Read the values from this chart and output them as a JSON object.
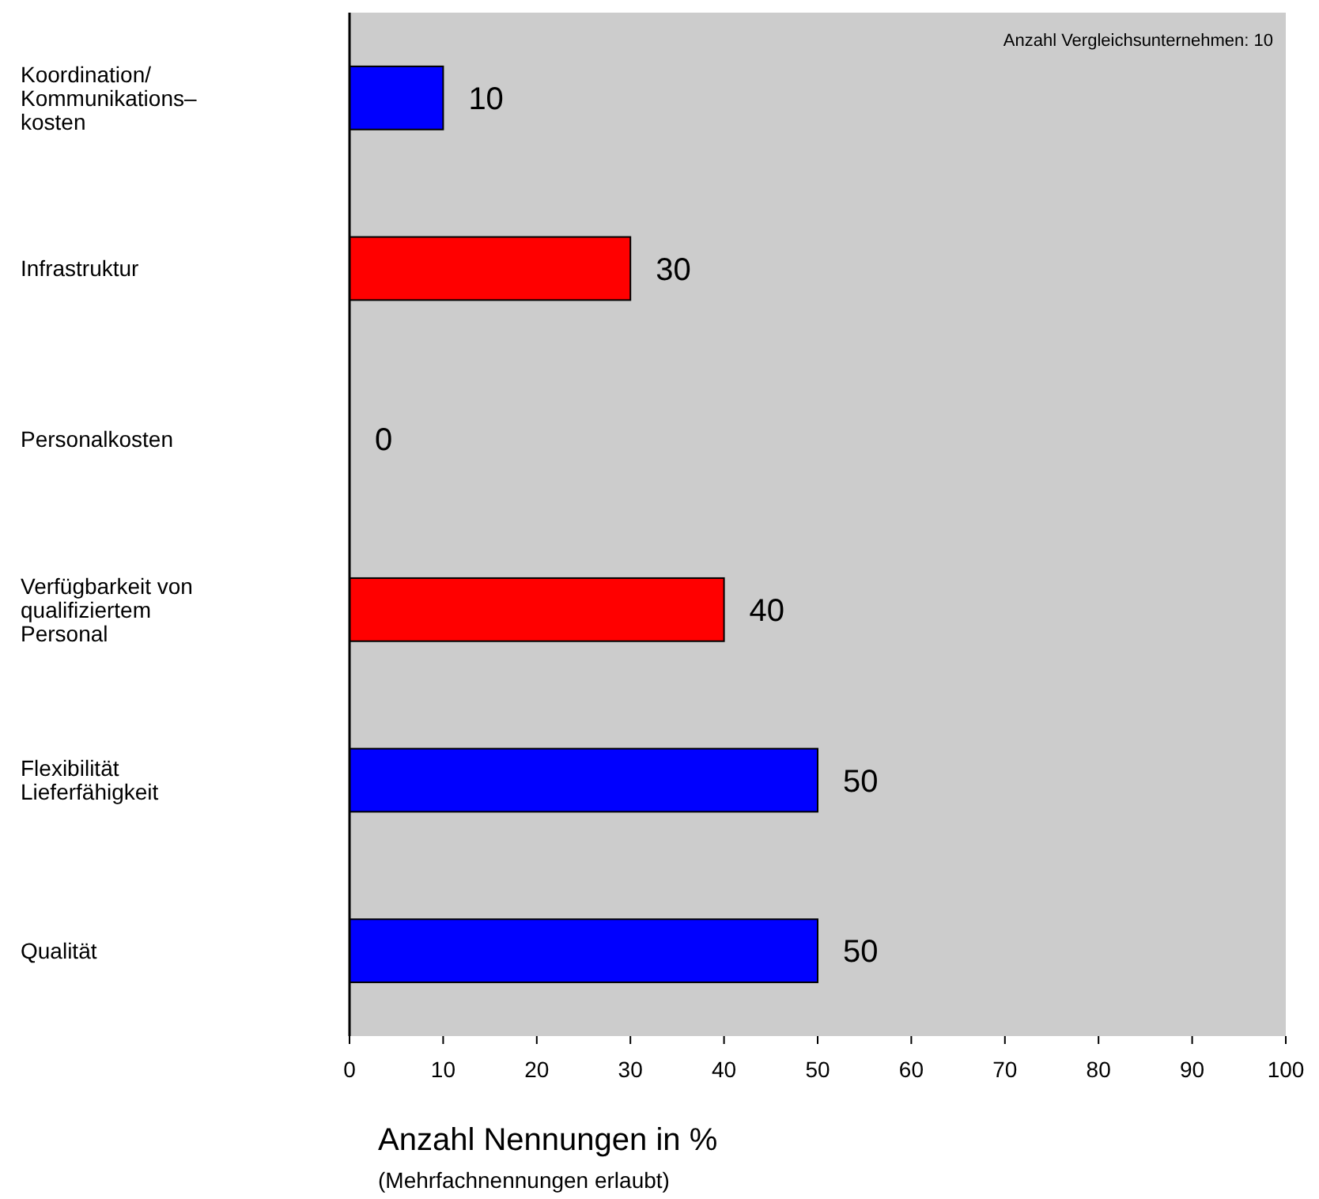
{
  "chart_data": {
    "type": "bar",
    "orientation": "horizontal",
    "categories": [
      "Koordination/\nKommunikations–\nkosten",
      "Infrastruktur",
      "Personalkosten",
      "Verfügbarkeit von\nqualifiziertem\nPersonal",
      "Flexibilität\nLieferfähigkeit",
      "Qualität"
    ],
    "values": [
      10,
      30,
      0,
      40,
      50,
      50
    ],
    "colors": [
      "#0000ff",
      "#ff0000",
      "#ff0000",
      "#ff0000",
      "#0000ff",
      "#0000ff"
    ],
    "xlim": [
      0,
      100
    ],
    "xticks": [
      0,
      10,
      20,
      30,
      40,
      50,
      60,
      70,
      80,
      90,
      100
    ],
    "xlabel": "Anzahl Nennungen in %",
    "annotations": [
      "Anzahl Vergleichsunternehmen: 10",
      "(Mehrfachnennungen erlaubt)"
    ],
    "data_labels": true
  }
}
